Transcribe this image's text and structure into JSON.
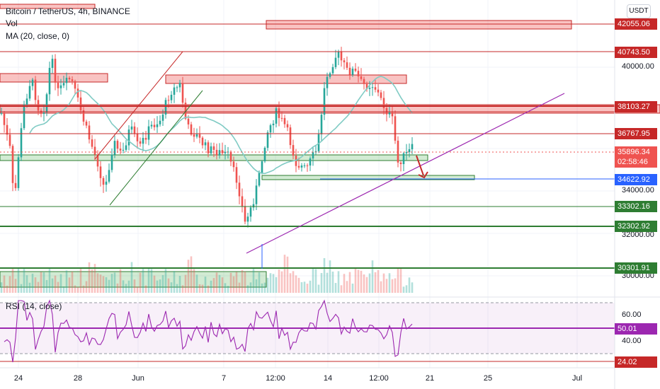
{
  "header": {
    "symbol_title": "Bitcoin / TetherUS, 4h, BINANCE",
    "volume_label": "Vol",
    "ma_label": "MA (20, close, 0)",
    "currency_button": "USDT"
  },
  "rsi_pane": {
    "label": "RSI (14, close)",
    "axis_ticks": [
      "60.00",
      "40.00"
    ],
    "current_value": "50.01",
    "marked_level": "24.02"
  },
  "price_axis": {
    "plain_ticks": [
      "40000.00",
      "34000.00",
      "32000.00",
      "30000.00"
    ],
    "tagged_levels": [
      {
        "value": "42055.06",
        "color": "#c62828"
      },
      {
        "value": "40743.50",
        "color": "#c62828"
      },
      {
        "value": "38103.27",
        "color": "#c62828"
      },
      {
        "value": "36767.95",
        "color": "#c62828"
      },
      {
        "value": "34622.92",
        "color": "#2962ff"
      },
      {
        "value": "33302.16",
        "color": "#2e7d32"
      },
      {
        "value": "32302.92",
        "color": "#2e7d32"
      },
      {
        "value": "30301.91",
        "color": "#2e7d32"
      }
    ],
    "current_price": "35896.34",
    "countdown": "02:58:46"
  },
  "time_axis": [
    "24",
    "28",
    "Jun",
    "7",
    "12:00",
    "14",
    "12:00",
    "21",
    "25",
    "Jul"
  ],
  "colors": {
    "up": "#26a69a",
    "down": "#ef5350",
    "ma": "#80cbc4",
    "resistance": "#c62828",
    "support": "#2e7d32",
    "trendline": "#9c27b0",
    "rsi": "#9c27b0",
    "price_tag": "#ef5350"
  }
}
